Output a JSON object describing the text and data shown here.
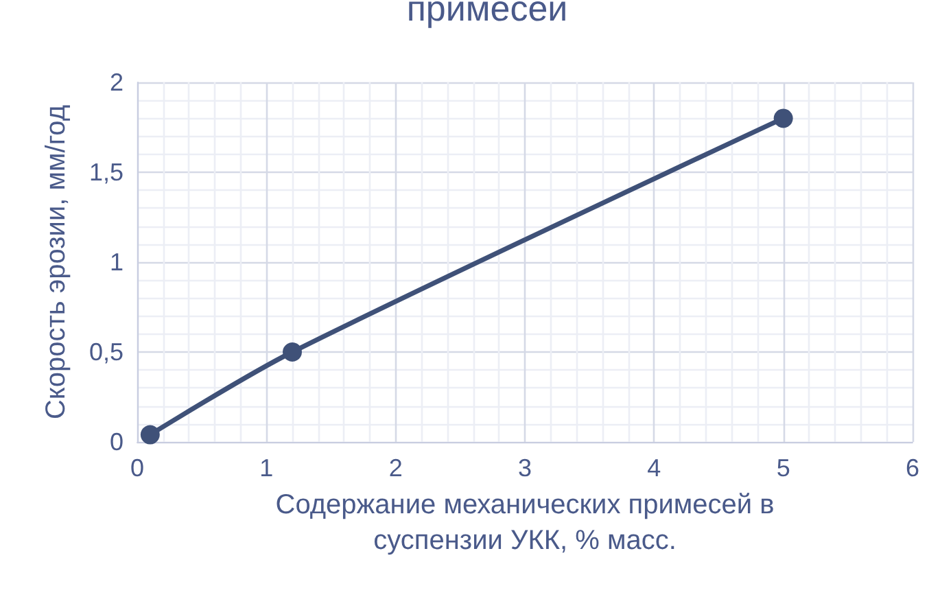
{
  "chart_data": {
    "type": "line",
    "title": "примесей",
    "xlabel": "Содержание механических примесей в\nсуспензии УКК, % масс.",
    "ylabel": "Скорость эрозии, мм/год",
    "x": [
      0.1,
      1.2,
      5
    ],
    "series": [
      {
        "color": "#3f5178",
        "values": [
          0.04,
          0.5,
          1.8
        ]
      }
    ],
    "xlim": [
      0,
      6
    ],
    "xticks": [
      0,
      1,
      2,
      3,
      4,
      5,
      6
    ],
    "ylim": [
      0,
      2
    ],
    "yticks": [
      0,
      {
        "value": 0.5,
        "label": "0,5"
      },
      1,
      {
        "value": 1.5,
        "label": "1,5"
      },
      2
    ],
    "grid": true,
    "marker": "circle",
    "line_style": "solid"
  }
}
